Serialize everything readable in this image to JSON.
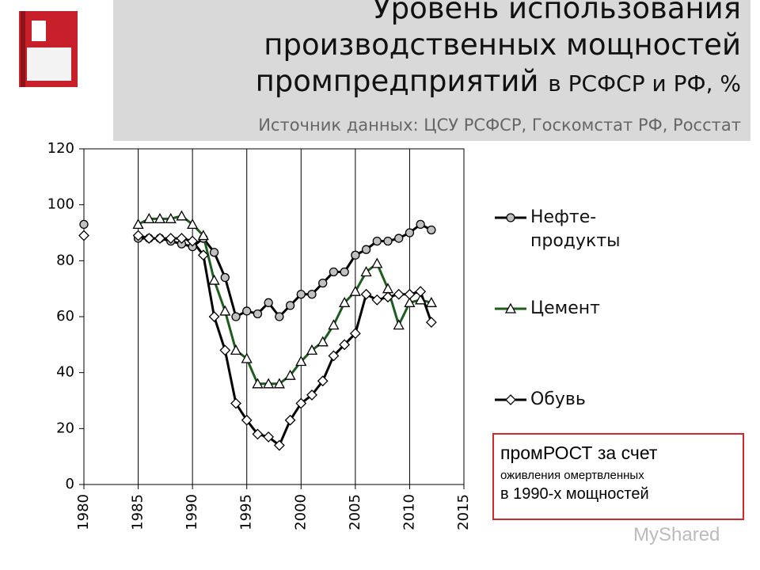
{
  "chart_data": {
    "type": "line",
    "title": "Уровень использования производственных мощностей промпредприятий",
    "title_suffix": "в РСФСР и РФ, %",
    "subtitle": "Источник данных: ЦСУ РСФСР, Госкомстат РФ, Росстат",
    "annotation": [
      "промРОСТ за счет",
      "оживления омертвленных",
      "в 1990-х мощностей"
    ],
    "watermark": "MyShared",
    "x": [
      1980,
      1981,
      1982,
      1983,
      1984,
      1985,
      1986,
      1987,
      1988,
      1989,
      1990,
      1991,
      1992,
      1993,
      1994,
      1995,
      1996,
      1997,
      1998,
      1999,
      2000,
      2001,
      2002,
      2003,
      2004,
      2005,
      2006,
      2007,
      2008,
      2009,
      2010,
      2011,
      2012
    ],
    "series": [
      {
        "name": "Нефте-продукты",
        "color": "#000000",
        "marker": "circle",
        "marker_fill": "#c0c0c0",
        "values": [
          93,
          null,
          null,
          null,
          null,
          88,
          88,
          88,
          87,
          86,
          85,
          88,
          83,
          74,
          60,
          62,
          61,
          65,
          60,
          64,
          68,
          68,
          72,
          76,
          76,
          82,
          84,
          87,
          87,
          88,
          90,
          93,
          91
        ]
      },
      {
        "name": "Цемент",
        "color": "#1e5c1e",
        "marker": "triangle",
        "marker_fill": "#ffffff",
        "values": [
          null,
          null,
          null,
          null,
          null,
          93,
          95,
          95,
          95,
          96,
          93,
          89,
          73,
          62,
          48,
          45,
          36,
          36,
          36,
          39,
          44,
          48,
          51,
          57,
          65,
          69,
          76,
          79,
          70,
          57,
          65,
          66,
          65
        ]
      },
      {
        "name": "Обувь",
        "color": "#000000",
        "marker": "diamond",
        "marker_fill": "#ffffff",
        "values": [
          89,
          null,
          null,
          null,
          null,
          89,
          88,
          88,
          88,
          88,
          87,
          82,
          60,
          48,
          29,
          23,
          18,
          17,
          14,
          23,
          29,
          32,
          37,
          46,
          50,
          54,
          68,
          66,
          67,
          68,
          68,
          69,
          58
        ]
      }
    ],
    "xlim": [
      1980,
      2015
    ],
    "xticks": [
      1980,
      1985,
      1990,
      1995,
      2000,
      2005,
      2010,
      2015
    ],
    "ylim": [
      0,
      120
    ],
    "yticks": [
      0,
      20,
      40,
      60,
      80,
      100,
      120
    ],
    "grid": "x",
    "legend": "right"
  }
}
